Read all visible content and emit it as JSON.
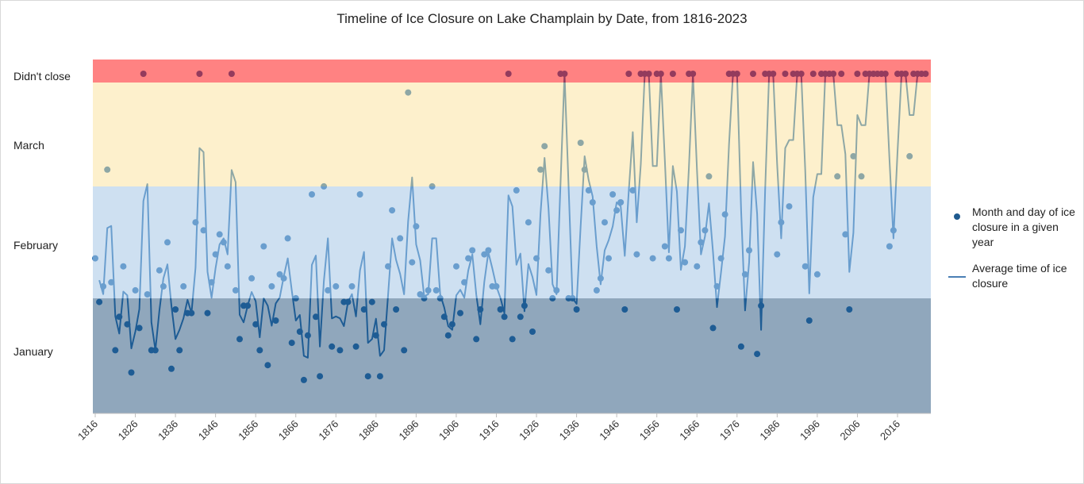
{
  "chart_data": {
    "type": "scatter",
    "title": "Timeline of Ice Closure on Lake Champlain by Date, from 1816-2023",
    "value_units": "day of year (1 = Jan 1); null = didn't close",
    "x_start": 1816,
    "x_end": 2023,
    "xlim": [
      1816,
      2023
    ],
    "x_ticks": [
      "1816",
      "1826",
      "1836",
      "1846",
      "1856",
      "1866",
      "1876",
      "1886",
      "1896",
      "1906",
      "1916",
      "1926",
      "1936",
      "1946",
      "1956",
      "1966",
      "1976",
      "1986",
      "1996",
      "2006",
      "2016"
    ],
    "y_categories": [
      {
        "label": "January",
        "from_day": 1,
        "to_day": 31,
        "color": "#8fa6bc"
      },
      {
        "label": "February",
        "from_day": 32,
        "to_day": 59,
        "color": "#cfe0f1"
      },
      {
        "label": "March",
        "from_day": 60,
        "to_day": 90,
        "color": "#fdf0cb"
      },
      {
        "label": "Didn't close",
        "from_day": null,
        "to_day": null,
        "color": "#ff7f7f"
      }
    ],
    "series": [
      {
        "name": "Month and day of ice closure in a given year",
        "kind": "scatter",
        "color": "#2e75b6",
        "values": [
          42,
          31,
          35,
          65,
          36,
          18,
          27,
          40,
          25,
          12,
          34,
          24,
          null,
          33,
          18,
          18,
          39,
          35,
          46,
          13,
          29,
          18,
          35,
          28,
          28,
          51,
          null,
          49,
          28,
          36,
          43,
          48,
          46,
          40,
          null,
          34,
          21,
          30,
          30,
          37,
          25,
          18,
          45,
          14,
          35,
          26,
          38,
          37,
          47,
          20,
          32,
          23,
          10,
          22,
          58,
          27,
          11,
          60,
          34,
          19,
          35,
          18,
          31,
          31,
          35,
          19,
          58,
          29,
          11,
          31,
          22,
          11,
          25,
          40,
          54,
          29,
          47,
          18,
          88,
          41,
          50,
          33,
          32,
          34,
          60,
          34,
          32,
          27,
          22,
          25,
          40,
          28,
          36,
          42,
          44,
          21,
          29,
          43,
          44,
          35,
          35,
          29,
          27,
          null,
          21,
          59,
          27,
          30,
          51,
          23,
          42,
          65,
          72,
          39,
          32,
          34,
          null,
          null,
          32,
          32,
          29,
          73,
          65,
          59,
          56,
          34,
          37,
          51,
          42,
          58,
          54,
          56,
          29,
          null,
          59,
          43,
          null,
          null,
          null,
          42,
          null,
          null,
          45,
          42,
          null,
          29,
          49,
          41,
          null,
          null,
          40,
          46,
          49,
          63,
          24,
          35,
          42,
          53,
          null,
          null,
          null,
          19,
          38,
          44,
          null,
          17,
          30,
          null,
          null,
          null,
          43,
          51,
          null,
          55,
          null,
          null,
          null,
          40,
          26,
          null,
          38,
          null,
          null,
          null,
          null,
          63,
          null,
          48,
          29,
          69,
          null,
          63,
          null,
          null,
          null,
          null,
          null,
          null,
          45,
          49,
          null,
          null,
          null,
          69,
          null,
          null,
          null,
          null
        ]
      },
      {
        "name": "Average time of ice closure",
        "kind": "line",
        "method": "2-period moving average",
        "color": "#2e75b6"
      }
    ],
    "legend_position": "right",
    "grid": false
  },
  "legend": {
    "dots": "Month and day of ice closure in a given year",
    "line": "Average time of ice closure"
  }
}
